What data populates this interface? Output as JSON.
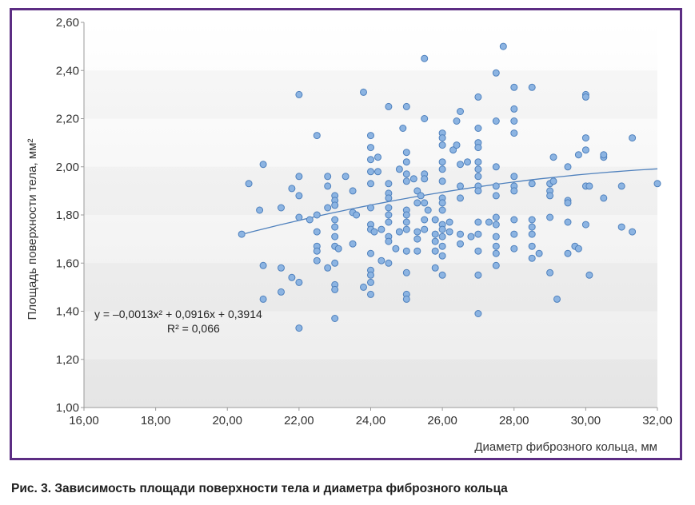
{
  "caption": "Рис. 3. Зависимость площади поверхности тела и диаметра фиброзного кольца",
  "colors": {
    "frame": "#5c2d83",
    "point_fill": "#8cb4e2",
    "point_stroke": "#4f81bd",
    "trend": "#4f81bd"
  },
  "chart_data": {
    "type": "scatter",
    "xlabel": "Диаметр фиброзного кольца, мм",
    "ylabel": "Площадь поверхности тела, мм²",
    "xlim": [
      16,
      32
    ],
    "ylim": [
      1.0,
      2.6
    ],
    "x_ticks": [
      "16,00",
      "18,00",
      "20,00",
      "22,00",
      "24,00",
      "26,00",
      "28,00",
      "30,00",
      "32,00"
    ],
    "y_ticks": [
      "1,00",
      "1,20",
      "1,40",
      "1,60",
      "1,80",
      "2,00",
      "2,20",
      "2,40",
      "2,60"
    ],
    "grid": "horizontal-bands",
    "trendline": {
      "type": "polynomial",
      "coefficients": [
        -0.0013,
        0.0916,
        0.3914
      ],
      "x_range": [
        20.5,
        32.0
      ],
      "equation": "y = –0,0013x² + 0,0916x + 0,3914",
      "r2": "R² = 0,066"
    },
    "points": [
      [
        20.4,
        1.72
      ],
      [
        20.6,
        1.93
      ],
      [
        20.9,
        1.82
      ],
      [
        21.0,
        2.01
      ],
      [
        21.0,
        1.59
      ],
      [
        21.0,
        1.45
      ],
      [
        21.5,
        1.58
      ],
      [
        21.5,
        1.48
      ],
      [
        21.5,
        1.83
      ],
      [
        21.8,
        1.91
      ],
      [
        21.8,
        1.54
      ],
      [
        22.0,
        2.3
      ],
      [
        22.0,
        1.96
      ],
      [
        22.0,
        1.88
      ],
      [
        22.0,
        1.79
      ],
      [
        22.0,
        1.52
      ],
      [
        22.0,
        1.33
      ],
      [
        22.3,
        1.78
      ],
      [
        22.5,
        2.13
      ],
      [
        22.5,
        1.8
      ],
      [
        22.5,
        1.73
      ],
      [
        22.5,
        1.67
      ],
      [
        22.5,
        1.65
      ],
      [
        22.5,
        1.61
      ],
      [
        22.8,
        1.96
      ],
      [
        22.8,
        1.92
      ],
      [
        22.8,
        1.83
      ],
      [
        22.8,
        1.58
      ],
      [
        23.0,
        1.88
      ],
      [
        23.0,
        1.86
      ],
      [
        23.0,
        1.84
      ],
      [
        23.0,
        1.78
      ],
      [
        23.0,
        1.75
      ],
      [
        23.0,
        1.71
      ],
      [
        23.0,
        1.67
      ],
      [
        23.0,
        1.6
      ],
      [
        23.0,
        1.51
      ],
      [
        23.0,
        1.49
      ],
      [
        23.0,
        1.37
      ],
      [
        23.1,
        1.66
      ],
      [
        23.3,
        1.96
      ],
      [
        23.5,
        1.9
      ],
      [
        23.5,
        1.81
      ],
      [
        23.5,
        1.68
      ],
      [
        23.6,
        1.8
      ],
      [
        23.8,
        2.31
      ],
      [
        23.8,
        1.5
      ],
      [
        24.0,
        2.13
      ],
      [
        24.0,
        2.08
      ],
      [
        24.0,
        2.03
      ],
      [
        24.0,
        1.98
      ],
      [
        24.0,
        1.93
      ],
      [
        24.0,
        1.83
      ],
      [
        24.0,
        1.76
      ],
      [
        24.0,
        1.74
      ],
      [
        24.0,
        1.64
      ],
      [
        24.0,
        1.57
      ],
      [
        24.0,
        1.55
      ],
      [
        24.0,
        1.52
      ],
      [
        24.0,
        1.47
      ],
      [
        24.1,
        1.73
      ],
      [
        24.2,
        2.04
      ],
      [
        24.2,
        1.98
      ],
      [
        24.3,
        1.74
      ],
      [
        24.3,
        1.61
      ],
      [
        24.5,
        2.25
      ],
      [
        24.5,
        1.93
      ],
      [
        24.5,
        1.89
      ],
      [
        24.5,
        1.87
      ],
      [
        24.5,
        1.83
      ],
      [
        24.5,
        1.8
      ],
      [
        24.5,
        1.77
      ],
      [
        24.5,
        1.71
      ],
      [
        24.5,
        1.69
      ],
      [
        24.5,
        1.6
      ],
      [
        24.7,
        1.66
      ],
      [
        24.8,
        1.99
      ],
      [
        24.8,
        1.73
      ],
      [
        24.9,
        2.16
      ],
      [
        25.0,
        2.25
      ],
      [
        25.0,
        2.06
      ],
      [
        25.0,
        2.02
      ],
      [
        25.0,
        1.97
      ],
      [
        25.0,
        1.94
      ],
      [
        25.0,
        1.82
      ],
      [
        25.0,
        1.8
      ],
      [
        25.0,
        1.77
      ],
      [
        25.0,
        1.74
      ],
      [
        25.0,
        1.65
      ],
      [
        25.0,
        1.56
      ],
      [
        25.0,
        1.47
      ],
      [
        25.0,
        1.45
      ],
      [
        25.2,
        1.95
      ],
      [
        25.3,
        1.9
      ],
      [
        25.3,
        1.85
      ],
      [
        25.3,
        1.73
      ],
      [
        25.3,
        1.7
      ],
      [
        25.3,
        1.65
      ],
      [
        25.4,
        1.88
      ],
      [
        25.5,
        2.45
      ],
      [
        25.5,
        2.2
      ],
      [
        25.5,
        1.97
      ],
      [
        25.5,
        1.95
      ],
      [
        25.5,
        1.85
      ],
      [
        25.5,
        1.78
      ],
      [
        25.5,
        1.74
      ],
      [
        25.6,
        1.82
      ],
      [
        25.8,
        1.78
      ],
      [
        25.8,
        1.72
      ],
      [
        25.8,
        1.69
      ],
      [
        25.8,
        1.65
      ],
      [
        25.8,
        1.58
      ],
      [
        26.0,
        2.14
      ],
      [
        26.0,
        2.12
      ],
      [
        26.0,
        2.09
      ],
      [
        26.0,
        2.02
      ],
      [
        26.0,
        1.99
      ],
      [
        26.0,
        1.94
      ],
      [
        26.0,
        1.87
      ],
      [
        26.0,
        1.85
      ],
      [
        26.0,
        1.82
      ],
      [
        26.0,
        1.76
      ],
      [
        26.0,
        1.74
      ],
      [
        26.0,
        1.71
      ],
      [
        26.0,
        1.67
      ],
      [
        26.0,
        1.63
      ],
      [
        26.0,
        1.55
      ],
      [
        26.2,
        1.77
      ],
      [
        26.2,
        1.73
      ],
      [
        26.3,
        2.07
      ],
      [
        26.4,
        2.19
      ],
      [
        26.4,
        2.09
      ],
      [
        26.5,
        2.23
      ],
      [
        26.5,
        2.01
      ],
      [
        26.5,
        1.92
      ],
      [
        26.5,
        1.87
      ],
      [
        26.5,
        1.72
      ],
      [
        26.5,
        1.68
      ],
      [
        26.7,
        2.02
      ],
      [
        26.8,
        1.71
      ],
      [
        27.0,
        2.29
      ],
      [
        27.0,
        2.16
      ],
      [
        27.0,
        2.1
      ],
      [
        27.0,
        2.08
      ],
      [
        27.0,
        2.02
      ],
      [
        27.0,
        1.99
      ],
      [
        27.0,
        1.96
      ],
      [
        27.0,
        1.92
      ],
      [
        27.0,
        1.9
      ],
      [
        27.0,
        1.77
      ],
      [
        27.0,
        1.72
      ],
      [
        27.0,
        1.65
      ],
      [
        27.0,
        1.55
      ],
      [
        27.0,
        1.39
      ],
      [
        27.3,
        1.77
      ],
      [
        27.5,
        2.39
      ],
      [
        27.5,
        2.19
      ],
      [
        27.5,
        2.0
      ],
      [
        27.5,
        1.92
      ],
      [
        27.5,
        1.88
      ],
      [
        27.5,
        1.79
      ],
      [
        27.5,
        1.76
      ],
      [
        27.5,
        1.71
      ],
      [
        27.5,
        1.67
      ],
      [
        27.5,
        1.64
      ],
      [
        27.5,
        1.59
      ],
      [
        27.7,
        2.5
      ],
      [
        28.0,
        2.33
      ],
      [
        28.0,
        2.24
      ],
      [
        28.0,
        2.19
      ],
      [
        28.0,
        2.14
      ],
      [
        28.0,
        1.96
      ],
      [
        28.0,
        1.92
      ],
      [
        28.0,
        1.9
      ],
      [
        28.0,
        1.78
      ],
      [
        28.0,
        1.72
      ],
      [
        28.0,
        1.66
      ],
      [
        28.5,
        2.33
      ],
      [
        28.5,
        1.93
      ],
      [
        28.5,
        1.78
      ],
      [
        28.5,
        1.75
      ],
      [
        28.5,
        1.72
      ],
      [
        28.5,
        1.67
      ],
      [
        28.5,
        1.62
      ],
      [
        28.7,
        1.64
      ],
      [
        29.0,
        1.93
      ],
      [
        29.0,
        1.9
      ],
      [
        29.0,
        1.88
      ],
      [
        29.0,
        1.79
      ],
      [
        29.0,
        1.56
      ],
      [
        29.1,
        2.04
      ],
      [
        29.1,
        1.94
      ],
      [
        29.2,
        1.45
      ],
      [
        29.5,
        2.0
      ],
      [
        29.5,
        1.86
      ],
      [
        29.5,
        1.85
      ],
      [
        29.5,
        1.77
      ],
      [
        29.5,
        1.64
      ],
      [
        29.7,
        1.67
      ],
      [
        29.8,
        2.05
      ],
      [
        29.8,
        1.66
      ],
      [
        30.0,
        2.3
      ],
      [
        30.0,
        2.29
      ],
      [
        30.0,
        2.12
      ],
      [
        30.0,
        2.07
      ],
      [
        30.0,
        1.92
      ],
      [
        30.0,
        1.76
      ],
      [
        30.1,
        1.92
      ],
      [
        30.1,
        1.55
      ],
      [
        30.5,
        2.04
      ],
      [
        30.5,
        2.05
      ],
      [
        30.5,
        1.87
      ],
      [
        31.0,
        1.92
      ],
      [
        31.0,
        1.75
      ],
      [
        31.3,
        2.12
      ],
      [
        31.3,
        1.73
      ],
      [
        32.0,
        1.93
      ]
    ]
  }
}
